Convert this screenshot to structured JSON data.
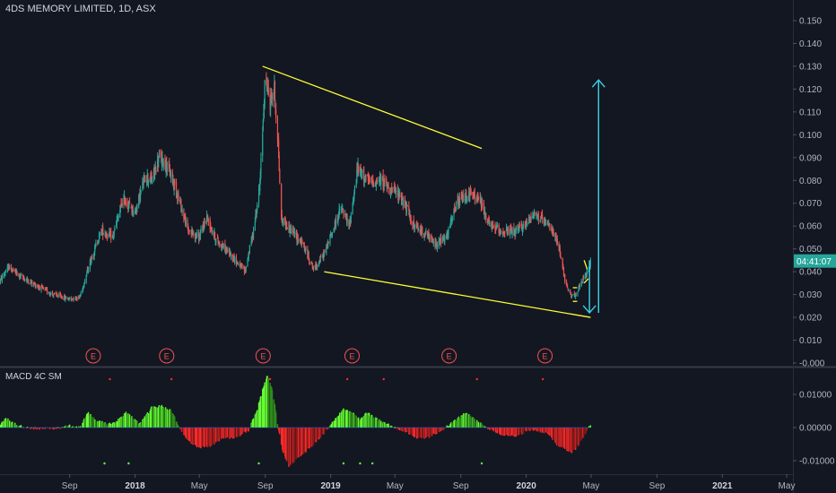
{
  "header": {
    "title": "4DS MEMORY LIMITED, 1D, ASX"
  },
  "indicator": {
    "title": "MACD 4C SM"
  },
  "colors": {
    "background": "#131722",
    "up_candle": "#26a69a",
    "down_candle": "#ef5350",
    "trendline": "#ffff33",
    "arrow": "#38d4e6",
    "macd_up": "#66ff33",
    "macd_up_dim": "#2e8b1a",
    "macd_down": "#ff2a2a",
    "macd_down_dim": "#8b1a1a",
    "price_label_bg": "#26a69a"
  },
  "chart_data": [
    {
      "type": "candlestick",
      "title": "4DS MEMORY LIMITED, 1D, ASX",
      "y_ticks": [
        "0.150",
        "0.140",
        "0.130",
        "0.120",
        "0.110",
        "0.100",
        "0.090",
        "0.080",
        "0.070",
        "0.060",
        "0.050",
        "0.040",
        "0.030",
        "0.020",
        "0.010",
        "-0.000"
      ],
      "ylim": [
        0.0,
        0.155
      ],
      "x_ticks": [
        "Sep",
        "2018",
        "May",
        "Sep",
        "2019",
        "May",
        "Sep",
        "2020",
        "May",
        "Sep",
        "2021",
        "May"
      ],
      "x_tick_dates": [
        "2017-09-01",
        "2018-01-01",
        "2018-05-01",
        "2018-09-01",
        "2019-01-01",
        "2019-05-01",
        "2019-09-01",
        "2020-01-01",
        "2020-05-01",
        "2020-09-01",
        "2021-01-01",
        "2021-05-01"
      ],
      "price_path": [
        [
          "2017-04-24",
          0.036
        ],
        [
          "2017-05-10",
          0.042
        ],
        [
          "2017-06-01",
          0.038
        ],
        [
          "2017-07-01",
          0.034
        ],
        [
          "2017-08-01",
          0.03
        ],
        [
          "2017-09-01",
          0.028
        ],
        [
          "2017-09-20",
          0.029
        ],
        [
          "2017-10-10",
          0.045
        ],
        [
          "2017-10-30",
          0.058
        ],
        [
          "2017-11-20",
          0.055
        ],
        [
          "2017-12-10",
          0.072
        ],
        [
          "2018-01-01",
          0.066
        ],
        [
          "2018-01-20",
          0.082
        ],
        [
          "2018-02-01",
          0.08
        ],
        [
          "2018-02-15",
          0.09
        ],
        [
          "2018-03-01",
          0.087
        ],
        [
          "2018-03-20",
          0.075
        ],
        [
          "2018-04-10",
          0.058
        ],
        [
          "2018-05-01",
          0.055
        ],
        [
          "2018-05-15",
          0.064
        ],
        [
          "2018-06-01",
          0.054
        ],
        [
          "2018-07-01",
          0.047
        ],
        [
          "2018-07-25",
          0.04
        ],
        [
          "2018-08-10",
          0.058
        ],
        [
          "2018-08-22",
          0.078
        ],
        [
          "2018-09-01",
          0.126
        ],
        [
          "2018-09-10",
          0.114
        ],
        [
          "2018-09-18",
          0.12
        ],
        [
          "2018-09-25",
          0.096
        ],
        [
          "2018-10-01",
          0.063
        ],
        [
          "2018-10-20",
          0.058
        ],
        [
          "2018-11-10",
          0.052
        ],
        [
          "2018-12-01",
          0.041
        ],
        [
          "2018-12-20",
          0.048
        ],
        [
          "2019-01-05",
          0.058
        ],
        [
          "2019-01-20",
          0.068
        ],
        [
          "2019-02-05",
          0.06
        ],
        [
          "2019-02-20",
          0.085
        ],
        [
          "2019-03-15",
          0.079
        ],
        [
          "2019-04-05",
          0.08
        ],
        [
          "2019-04-25",
          0.076
        ],
        [
          "2019-05-15",
          0.072
        ],
        [
          "2019-06-05",
          0.06
        ],
        [
          "2019-06-25",
          0.057
        ],
        [
          "2019-07-15",
          0.052
        ],
        [
          "2019-08-05",
          0.055
        ],
        [
          "2019-08-25",
          0.07
        ],
        [
          "2019-09-15",
          0.074
        ],
        [
          "2019-10-05",
          0.072
        ],
        [
          "2019-10-25",
          0.06
        ],
        [
          "2019-11-15",
          0.058
        ],
        [
          "2019-12-10",
          0.057
        ],
        [
          "2020-01-01",
          0.061
        ],
        [
          "2020-01-15",
          0.066
        ],
        [
          "2020-02-01",
          0.062
        ],
        [
          "2020-02-20",
          0.058
        ],
        [
          "2020-03-05",
          0.048
        ],
        [
          "2020-03-15",
          0.034
        ],
        [
          "2020-03-25",
          0.029
        ],
        [
          "2020-04-05",
          0.031
        ],
        [
          "2020-04-15",
          0.036
        ],
        [
          "2020-04-25",
          0.04
        ],
        [
          "2020-04-30",
          0.045
        ]
      ],
      "last_price_label": "04:41:07",
      "last_price": 0.0445,
      "earnings_markers": [
        {
          "date": "2017-10-15",
          "label": "E"
        },
        {
          "date": "2018-03-01",
          "label": "E"
        },
        {
          "date": "2018-08-28",
          "label": "E"
        },
        {
          "date": "2019-02-10",
          "label": "E"
        },
        {
          "date": "2019-08-10",
          "label": "E"
        },
        {
          "date": "2020-02-05",
          "label": "E"
        }
      ],
      "annotations": {
        "trendlines": [
          {
            "from": [
              "2018-08-27",
              0.13
            ],
            "to": [
              "2019-10-10",
              0.094
            ]
          },
          {
            "from": [
              "2018-12-20",
              0.04
            ],
            "to": [
              "2020-04-30",
              0.02
            ]
          }
        ],
        "small_lines": [
          {
            "from": [
              "2020-03-28",
              0.033
            ],
            "to": [
              "2020-04-05",
              0.033
            ]
          },
          {
            "from": [
              "2020-03-28",
              0.027
            ],
            "to": [
              "2020-04-05",
              0.027
            ]
          },
          {
            "from": [
              "2020-04-18",
              0.035
            ],
            "to": [
              "2020-04-26",
              0.037
            ]
          },
          {
            "from": [
              "2020-04-18",
              0.045
            ],
            "to": [
              "2020-04-24",
              0.041
            ]
          }
        ],
        "arrows": [
          {
            "direction": "up",
            "date": "2020-05-15",
            "from": 0.022,
            "to": 0.124
          },
          {
            "direction": "down",
            "date": "2020-04-28",
            "from": 0.045,
            "to": 0.022
          }
        ]
      }
    },
    {
      "type": "bar",
      "title": "MACD 4C SM",
      "y_ticks": [
        "0.01000",
        "0.00000",
        "-0.01000"
      ],
      "ylim": [
        -0.0115,
        0.0145
      ],
      "macd_path": [
        [
          "2017-04-24",
          0.0008
        ],
        [
          "2017-05-05",
          0.0028
        ],
        [
          "2017-05-20",
          0.0012
        ],
        [
          "2017-06-10",
          0.0
        ],
        [
          "2017-07-10",
          -0.0004
        ],
        [
          "2017-08-10",
          -0.0002
        ],
        [
          "2017-09-01",
          0.0005
        ],
        [
          "2017-09-20",
          0.0
        ],
        [
          "2017-10-05",
          0.0045
        ],
        [
          "2017-10-20",
          0.0022
        ],
        [
          "2017-11-10",
          0.001
        ],
        [
          "2017-11-25",
          0.0015
        ],
        [
          "2017-12-15",
          0.0045
        ],
        [
          "2018-01-10",
          0.0012
        ],
        [
          "2018-02-01",
          0.006
        ],
        [
          "2018-02-20",
          0.0065
        ],
        [
          "2018-03-10",
          0.005
        ],
        [
          "2018-03-25",
          0.0
        ],
        [
          "2018-04-10",
          -0.004
        ],
        [
          "2018-05-01",
          -0.006
        ],
        [
          "2018-05-20",
          -0.0055
        ],
        [
          "2018-06-10",
          -0.0035
        ],
        [
          "2018-07-10",
          -0.0028
        ],
        [
          "2018-08-01",
          -0.0008
        ],
        [
          "2018-08-15",
          0.0045
        ],
        [
          "2018-08-28",
          0.012
        ],
        [
          "2018-09-05",
          0.0155
        ],
        [
          "2018-09-15",
          0.011
        ],
        [
          "2018-09-25",
          0.0
        ],
        [
          "2018-10-05",
          -0.008
        ],
        [
          "2018-10-15",
          -0.0115
        ],
        [
          "2018-11-01",
          -0.009
        ],
        [
          "2018-11-25",
          -0.006
        ],
        [
          "2018-12-20",
          -0.0015
        ],
        [
          "2019-01-10",
          0.0025
        ],
        [
          "2019-01-25",
          0.0055
        ],
        [
          "2019-02-10",
          0.0045
        ],
        [
          "2019-02-25",
          0.0025
        ],
        [
          "2019-03-10",
          0.0045
        ],
        [
          "2019-03-25",
          0.0028
        ],
        [
          "2019-04-10",
          0.0015
        ],
        [
          "2019-05-01",
          0.0
        ],
        [
          "2019-05-20",
          -0.001
        ],
        [
          "2019-06-10",
          -0.003
        ],
        [
          "2019-07-01",
          -0.003
        ],
        [
          "2019-07-25",
          -0.001
        ],
        [
          "2019-08-20",
          0.002
        ],
        [
          "2019-09-10",
          0.0045
        ],
        [
          "2019-10-01",
          0.002
        ],
        [
          "2019-10-20",
          0.0
        ],
        [
          "2019-11-15",
          -0.002
        ],
        [
          "2019-12-15",
          -0.0025
        ],
        [
          "2020-01-10",
          -0.0005
        ],
        [
          "2020-01-25",
          -0.001
        ],
        [
          "2020-02-10",
          -0.0015
        ],
        [
          "2020-02-25",
          -0.005
        ],
        [
          "2020-03-15",
          -0.0065
        ],
        [
          "2020-03-28",
          -0.0075
        ],
        [
          "2020-04-10",
          -0.0045
        ],
        [
          "2020-04-22",
          -0.0015
        ],
        [
          "2020-04-30",
          0.001
        ]
      ],
      "signal_dots": {
        "top_dates": [
          "2017-11-15",
          "2018-03-10",
          "2018-09-10",
          "2019-02-01",
          "2019-04-10",
          "2019-10-01",
          "2020-02-01"
        ],
        "bottom_dates": [
          "2017-11-05",
          "2017-12-20",
          "2018-08-20",
          "2019-01-25",
          "2019-02-25",
          "2019-03-20",
          "2019-10-10"
        ]
      }
    }
  ]
}
